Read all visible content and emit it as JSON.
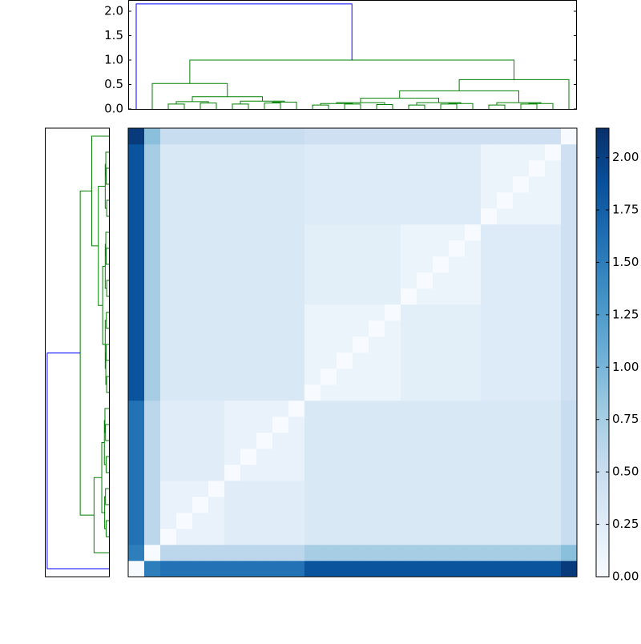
{
  "chart_data": {
    "type": "clustermap",
    "colormap": "Blues",
    "clim": [
      0,
      2.14
    ],
    "colorbar_ticks": [
      {
        "value": 0,
        "label": "0.00"
      },
      {
        "value": 0.25,
        "label": "0.25"
      },
      {
        "value": 0.5,
        "label": "0.50"
      },
      {
        "value": 0.75,
        "label": "0.75"
      },
      {
        "value": 1,
        "label": "1.00"
      },
      {
        "value": 1.25,
        "label": "1.25"
      },
      {
        "value": 1.5,
        "label": "1.50"
      },
      {
        "value": 1.75,
        "label": "1.75"
      },
      {
        "value": 2,
        "label": "2.00"
      }
    ],
    "dendrogram": {
      "ylim": [
        0,
        2.23
      ],
      "yticks": [
        {
          "value": 0,
          "label": "0.0"
        },
        0.5,
        {
          "value": 1,
          "label": "1.0"
        },
        1.5,
        {
          "value": 2,
          "label": "2.0"
        }
      ],
      "color_threshold": 1.5,
      "above_color": "#0000ff",
      "below_color": "#008000",
      "links": [
        {
          "left": 2,
          "right": 3,
          "height": 0.1
        },
        {
          "left": 4,
          "right": 5,
          "height": 0.12
        },
        {
          "left": 28,
          "right": 29,
          "height": 0.15
        },
        {
          "left": 6,
          "right": 7,
          "height": 0.1
        },
        {
          "left": 8,
          "right": 9,
          "height": 0.12
        },
        {
          "left": 32,
          "right": 10,
          "height": 0.14
        },
        {
          "left": 31,
          "right": 33,
          "height": 0.16
        },
        {
          "left": 30,
          "right": 34,
          "height": 0.25
        },
        {
          "left": 1,
          "right": 35,
          "height": 0.52
        },
        {
          "left": 11,
          "right": 12,
          "height": 0.08
        },
        {
          "left": 13,
          "right": 14,
          "height": 0.1
        },
        {
          "left": 15,
          "right": 16,
          "height": 0.09
        },
        {
          "left": 37,
          "right": 38,
          "height": 0.11
        },
        {
          "left": 40,
          "right": 39,
          "height": 0.13
        },
        {
          "left": 17,
          "right": 18,
          "height": 0.08
        },
        {
          "left": 19,
          "right": 20,
          "height": 0.1
        },
        {
          "left": 43,
          "right": 21,
          "height": 0.11
        },
        {
          "left": 42,
          "right": 44,
          "height": 0.13
        },
        {
          "left": 41,
          "right": 45,
          "height": 0.22
        },
        {
          "left": 22,
          "right": 23,
          "height": 0.08
        },
        {
          "left": 24,
          "right": 25,
          "height": 0.1
        },
        {
          "left": 48,
          "right": 26,
          "height": 0.11
        },
        {
          "left": 47,
          "right": 49,
          "height": 0.13
        },
        {
          "left": 46,
          "right": 50,
          "height": 0.37
        },
        {
          "left": 51,
          "right": 27,
          "height": 0.6
        },
        {
          "left": 36,
          "right": 52,
          "height": 1.0
        },
        {
          "left": 0,
          "right": 53,
          "height": 2.15
        }
      ]
    },
    "matrix": [
      [
        0,
        1.5,
        1.6,
        1.6,
        1.6,
        1.6,
        1.6,
        1.6,
        1.6,
        1.6,
        1.6,
        1.85,
        1.85,
        1.85,
        1.85,
        1.85,
        1.85,
        1.85,
        1.85,
        1.85,
        1.85,
        1.85,
        1.85,
        1.85,
        1.85,
        1.85,
        1.85,
        2.05
      ],
      [
        1.5,
        0,
        0.6,
        0.6,
        0.6,
        0.6,
        0.6,
        0.6,
        0.6,
        0.6,
        0.6,
        0.75,
        0.75,
        0.75,
        0.75,
        0.75,
        0.75,
        0.75,
        0.75,
        0.75,
        0.75,
        0.75,
        0.75,
        0.75,
        0.75,
        0.75,
        0.75,
        0.9
      ],
      [
        1.6,
        0.6,
        0,
        0.15,
        0.15,
        0.15,
        0.25,
        0.25,
        0.25,
        0.25,
        0.25,
        0.32,
        0.32,
        0.32,
        0.32,
        0.32,
        0.32,
        0.32,
        0.32,
        0.32,
        0.32,
        0.32,
        0.32,
        0.32,
        0.32,
        0.32,
        0.32,
        0.5
      ],
      [
        1.6,
        0.6,
        0.15,
        0,
        0.15,
        0.15,
        0.25,
        0.25,
        0.25,
        0.25,
        0.25,
        0.32,
        0.32,
        0.32,
        0.32,
        0.32,
        0.32,
        0.32,
        0.32,
        0.32,
        0.32,
        0.32,
        0.32,
        0.32,
        0.32,
        0.32,
        0.32,
        0.5
      ],
      [
        1.6,
        0.6,
        0.15,
        0.15,
        0,
        0.15,
        0.25,
        0.25,
        0.25,
        0.25,
        0.25,
        0.32,
        0.32,
        0.32,
        0.32,
        0.32,
        0.32,
        0.32,
        0.32,
        0.32,
        0.32,
        0.32,
        0.32,
        0.32,
        0.32,
        0.32,
        0.32,
        0.5
      ],
      [
        1.6,
        0.6,
        0.15,
        0.15,
        0.15,
        0,
        0.25,
        0.25,
        0.25,
        0.25,
        0.25,
        0.32,
        0.32,
        0.32,
        0.32,
        0.32,
        0.32,
        0.32,
        0.32,
        0.32,
        0.32,
        0.32,
        0.32,
        0.32,
        0.32,
        0.32,
        0.32,
        0.5
      ],
      [
        1.6,
        0.6,
        0.25,
        0.25,
        0.25,
        0.25,
        0,
        0.15,
        0.15,
        0.15,
        0.15,
        0.32,
        0.32,
        0.32,
        0.32,
        0.32,
        0.32,
        0.32,
        0.32,
        0.32,
        0.32,
        0.32,
        0.32,
        0.32,
        0.32,
        0.32,
        0.32,
        0.5
      ],
      [
        1.6,
        0.6,
        0.25,
        0.25,
        0.25,
        0.25,
        0.15,
        0,
        0.15,
        0.15,
        0.15,
        0.32,
        0.32,
        0.32,
        0.32,
        0.32,
        0.32,
        0.32,
        0.32,
        0.32,
        0.32,
        0.32,
        0.32,
        0.32,
        0.32,
        0.32,
        0.32,
        0.5
      ],
      [
        1.6,
        0.6,
        0.25,
        0.25,
        0.25,
        0.25,
        0.15,
        0.15,
        0,
        0.15,
        0.15,
        0.32,
        0.32,
        0.32,
        0.32,
        0.32,
        0.32,
        0.32,
        0.32,
        0.32,
        0.32,
        0.32,
        0.32,
        0.32,
        0.32,
        0.32,
        0.32,
        0.5
      ],
      [
        1.6,
        0.6,
        0.25,
        0.25,
        0.25,
        0.25,
        0.15,
        0.15,
        0.15,
        0,
        0.15,
        0.32,
        0.32,
        0.32,
        0.32,
        0.32,
        0.32,
        0.32,
        0.32,
        0.32,
        0.32,
        0.32,
        0.32,
        0.32,
        0.32,
        0.32,
        0.32,
        0.5
      ],
      [
        1.6,
        0.6,
        0.25,
        0.25,
        0.25,
        0.25,
        0.15,
        0.15,
        0.15,
        0.15,
        0,
        0.32,
        0.32,
        0.32,
        0.32,
        0.32,
        0.32,
        0.32,
        0.32,
        0.32,
        0.32,
        0.32,
        0.32,
        0.32,
        0.32,
        0.32,
        0.32,
        0.5
      ],
      [
        1.85,
        0.75,
        0.32,
        0.32,
        0.32,
        0.32,
        0.32,
        0.32,
        0.32,
        0.32,
        0.32,
        0,
        0.12,
        0.12,
        0.12,
        0.12,
        0.12,
        0.22,
        0.22,
        0.22,
        0.22,
        0.22,
        0.28,
        0.28,
        0.28,
        0.28,
        0.28,
        0.45
      ],
      [
        1.85,
        0.75,
        0.32,
        0.32,
        0.32,
        0.32,
        0.32,
        0.32,
        0.32,
        0.32,
        0.32,
        0.12,
        0,
        0.12,
        0.12,
        0.12,
        0.12,
        0.22,
        0.22,
        0.22,
        0.22,
        0.22,
        0.28,
        0.28,
        0.28,
        0.28,
        0.28,
        0.45
      ],
      [
        1.85,
        0.75,
        0.32,
        0.32,
        0.32,
        0.32,
        0.32,
        0.32,
        0.32,
        0.32,
        0.32,
        0.12,
        0.12,
        0,
        0.12,
        0.12,
        0.12,
        0.22,
        0.22,
        0.22,
        0.22,
        0.22,
        0.28,
        0.28,
        0.28,
        0.28,
        0.28,
        0.45
      ],
      [
        1.85,
        0.75,
        0.32,
        0.32,
        0.32,
        0.32,
        0.32,
        0.32,
        0.32,
        0.32,
        0.32,
        0.12,
        0.12,
        0.12,
        0,
        0.12,
        0.12,
        0.22,
        0.22,
        0.22,
        0.22,
        0.22,
        0.28,
        0.28,
        0.28,
        0.28,
        0.28,
        0.45
      ],
      [
        1.85,
        0.75,
        0.32,
        0.32,
        0.32,
        0.32,
        0.32,
        0.32,
        0.32,
        0.32,
        0.32,
        0.12,
        0.12,
        0.12,
        0.12,
        0,
        0.12,
        0.22,
        0.22,
        0.22,
        0.22,
        0.22,
        0.28,
        0.28,
        0.28,
        0.28,
        0.28,
        0.45
      ],
      [
        1.85,
        0.75,
        0.32,
        0.32,
        0.32,
        0.32,
        0.32,
        0.32,
        0.32,
        0.32,
        0.32,
        0.12,
        0.12,
        0.12,
        0.12,
        0.12,
        0,
        0.22,
        0.22,
        0.22,
        0.22,
        0.22,
        0.28,
        0.28,
        0.28,
        0.28,
        0.28,
        0.45
      ],
      [
        1.85,
        0.75,
        0.32,
        0.32,
        0.32,
        0.32,
        0.32,
        0.32,
        0.32,
        0.32,
        0.32,
        0.22,
        0.22,
        0.22,
        0.22,
        0.22,
        0.22,
        0,
        0.12,
        0.12,
        0.12,
        0.12,
        0.28,
        0.28,
        0.28,
        0.28,
        0.28,
        0.45
      ],
      [
        1.85,
        0.75,
        0.32,
        0.32,
        0.32,
        0.32,
        0.32,
        0.32,
        0.32,
        0.32,
        0.32,
        0.22,
        0.22,
        0.22,
        0.22,
        0.22,
        0.22,
        0.12,
        0,
        0.12,
        0.12,
        0.12,
        0.28,
        0.28,
        0.28,
        0.28,
        0.28,
        0.45
      ],
      [
        1.85,
        0.75,
        0.32,
        0.32,
        0.32,
        0.32,
        0.32,
        0.32,
        0.32,
        0.32,
        0.32,
        0.22,
        0.22,
        0.22,
        0.22,
        0.22,
        0.22,
        0.12,
        0.12,
        0,
        0.12,
        0.12,
        0.28,
        0.28,
        0.28,
        0.28,
        0.28,
        0.45
      ],
      [
        1.85,
        0.75,
        0.32,
        0.32,
        0.32,
        0.32,
        0.32,
        0.32,
        0.32,
        0.32,
        0.32,
        0.22,
        0.22,
        0.22,
        0.22,
        0.22,
        0.22,
        0.12,
        0.12,
        0.12,
        0,
        0.12,
        0.28,
        0.28,
        0.28,
        0.28,
        0.28,
        0.45
      ],
      [
        1.85,
        0.75,
        0.32,
        0.32,
        0.32,
        0.32,
        0.32,
        0.32,
        0.32,
        0.32,
        0.32,
        0.22,
        0.22,
        0.22,
        0.22,
        0.22,
        0.22,
        0.12,
        0.12,
        0.12,
        0.12,
        0,
        0.28,
        0.28,
        0.28,
        0.28,
        0.28,
        0.45
      ],
      [
        1.85,
        0.75,
        0.32,
        0.32,
        0.32,
        0.32,
        0.32,
        0.32,
        0.32,
        0.32,
        0.32,
        0.28,
        0.28,
        0.28,
        0.28,
        0.28,
        0.28,
        0.28,
        0.28,
        0.28,
        0.28,
        0.28,
        0,
        0.12,
        0.12,
        0.12,
        0.12,
        0.45
      ],
      [
        1.85,
        0.75,
        0.32,
        0.32,
        0.32,
        0.32,
        0.32,
        0.32,
        0.32,
        0.32,
        0.32,
        0.28,
        0.28,
        0.28,
        0.28,
        0.28,
        0.28,
        0.28,
        0.28,
        0.28,
        0.28,
        0.28,
        0.12,
        0,
        0.12,
        0.12,
        0.12,
        0.45
      ],
      [
        1.85,
        0.75,
        0.32,
        0.32,
        0.32,
        0.32,
        0.32,
        0.32,
        0.32,
        0.32,
        0.32,
        0.28,
        0.28,
        0.28,
        0.28,
        0.28,
        0.28,
        0.28,
        0.28,
        0.28,
        0.28,
        0.28,
        0.12,
        0.12,
        0,
        0.12,
        0.12,
        0.45
      ],
      [
        1.85,
        0.75,
        0.32,
        0.32,
        0.32,
        0.32,
        0.32,
        0.32,
        0.32,
        0.32,
        0.32,
        0.28,
        0.28,
        0.28,
        0.28,
        0.28,
        0.28,
        0.28,
        0.28,
        0.28,
        0.28,
        0.28,
        0.12,
        0.12,
        0.12,
        0,
        0.12,
        0.45
      ],
      [
        1.85,
        0.75,
        0.32,
        0.32,
        0.32,
        0.32,
        0.32,
        0.32,
        0.32,
        0.32,
        0.32,
        0.28,
        0.28,
        0.28,
        0.28,
        0.28,
        0.28,
        0.28,
        0.28,
        0.28,
        0.28,
        0.28,
        0.12,
        0.12,
        0.12,
        0.12,
        0,
        0.45
      ],
      [
        2.05,
        0.9,
        0.5,
        0.5,
        0.5,
        0.5,
        0.5,
        0.5,
        0.5,
        0.5,
        0.5,
        0.45,
        0.45,
        0.45,
        0.45,
        0.45,
        0.45,
        0.45,
        0.45,
        0.45,
        0.45,
        0.45,
        0.45,
        0.45,
        0.45,
        0.45,
        0.45,
        0
      ]
    ]
  }
}
